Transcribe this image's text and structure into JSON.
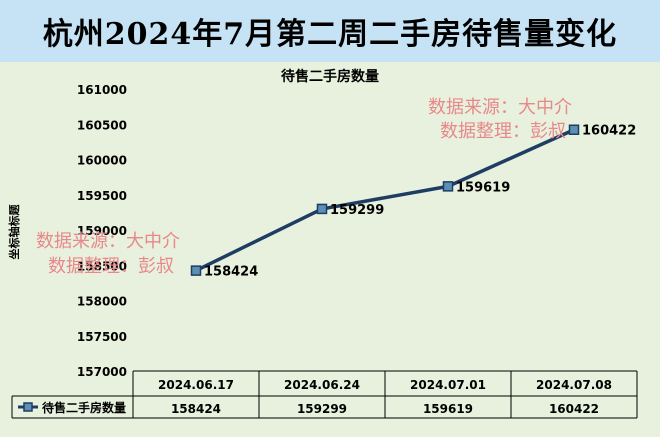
{
  "page_title": "杭州2024年7月第二周二手房待售量变化",
  "watermarks": [
    {
      "line1": "数据来源：大中介",
      "line2": "数据整理：彭叔"
    },
    {
      "line1": "数据来源：大中介",
      "line2": "数据整理：彭叔"
    }
  ],
  "chart_data": {
    "type": "line",
    "title": "待售二手房数量",
    "ylabel": "坐标轴标题",
    "xlabel": "",
    "categories": [
      "2024.06.17",
      "2024.06.24",
      "2024.07.01",
      "2024.07.08"
    ],
    "series": [
      {
        "name": "待售二手房数量",
        "values": [
          158424,
          159299,
          159619,
          160422
        ],
        "color": "#1f3d63"
      }
    ],
    "ylim": [
      157000,
      161000
    ],
    "yticks": [
      "161000",
      "160500",
      "160000",
      "159500",
      "159000",
      "158500",
      "158000",
      "157500",
      "157000"
    ],
    "data_labels": [
      "158424",
      "159299",
      "159619",
      "160422"
    ],
    "data_table": true,
    "grid": false,
    "colors": {
      "background": "#e8f1de",
      "banner": "#c5e3f4",
      "line": "#1f3d63",
      "marker_fill": "#5b8fb5"
    }
  }
}
